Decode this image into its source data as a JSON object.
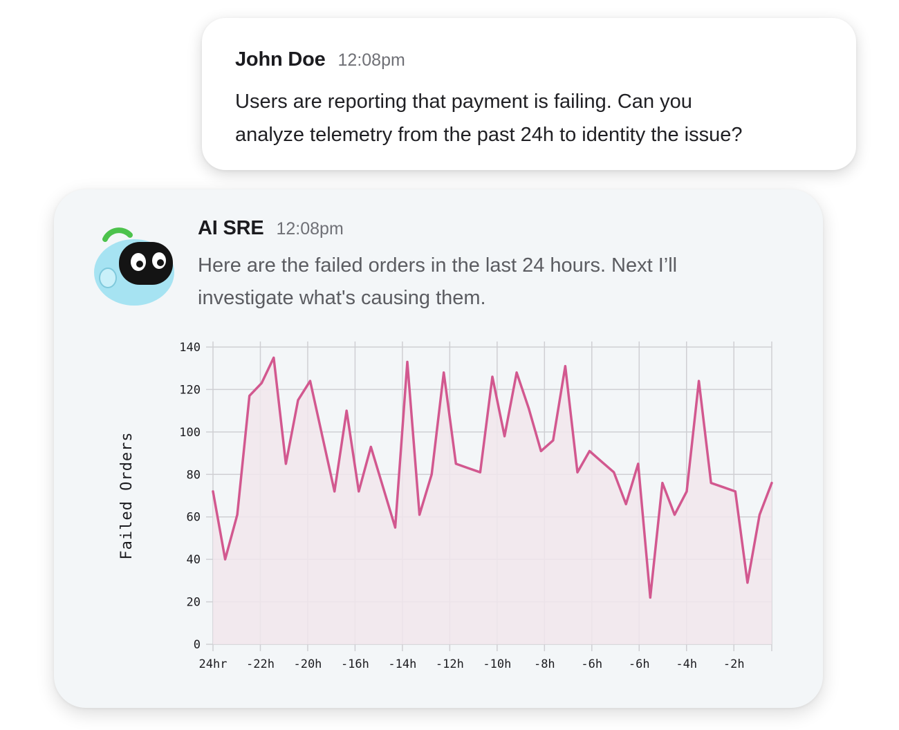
{
  "user_message": {
    "sender": "John Doe",
    "time": "12:08pm",
    "text_line1": "Users are reporting that payment is failing. Can you",
    "text_line2": "analyze telemetry from the past 24h to identity the issue?"
  },
  "ai_message": {
    "sender": "AI SRE",
    "time": "12:08pm",
    "text_line1": "Here are the failed orders in the last 24 hours. Next I’ll",
    "text_line2": "investigate what's causing them.",
    "avatar_icon": "robot-avatar-icon"
  },
  "colors": {
    "line": "#d2588f",
    "area": "#f1e6ec",
    "grid": "#cfcfd3",
    "avatar_body": "#a6e3f2",
    "avatar_antenna": "#4cc24c"
  },
  "chart_data": {
    "type": "area",
    "title": "",
    "xlabel": "",
    "ylabel": "Failed Orders",
    "ylim": [
      0,
      140
    ],
    "yticks": [
      0,
      20,
      40,
      60,
      80,
      100,
      120,
      140
    ],
    "xtick_labels": [
      "24hr",
      "-22h",
      "-20h",
      "-16h",
      "-14h",
      "-12h",
      "-10h",
      "-8h",
      "-6h",
      "-6h",
      "-4h",
      "-2h"
    ],
    "grid": true,
    "series": [
      {
        "values": [
          72,
          40,
          61,
          117,
          123,
          135,
          85,
          115,
          124,
          98,
          72,
          110,
          72,
          93,
          74,
          55,
          133,
          61,
          80,
          128,
          85,
          83,
          81,
          126,
          98,
          128,
          111,
          91,
          96,
          131,
          81,
          91,
          86,
          81,
          66,
          85,
          22,
          76,
          61,
          72,
          124,
          76,
          74,
          72,
          29,
          61,
          76
        ]
      }
    ]
  }
}
